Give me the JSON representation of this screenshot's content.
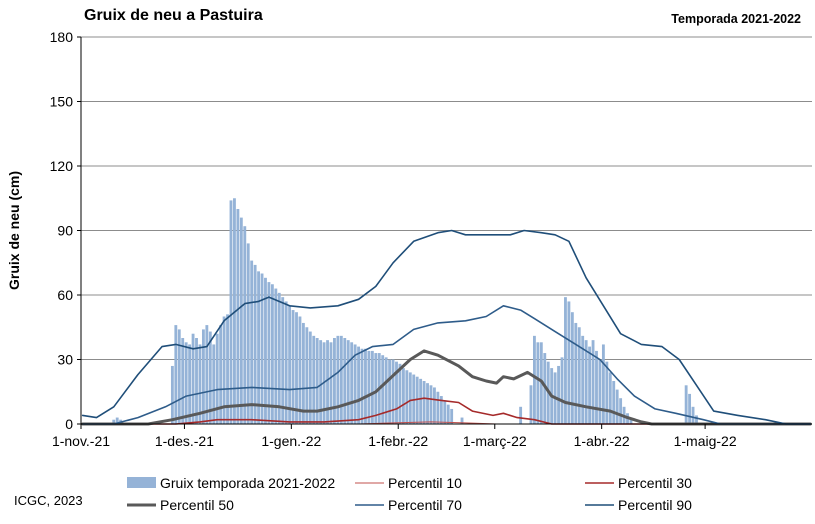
{
  "header": {
    "title": "Gruix de neu a Pastuira",
    "season": "Temporada 2021-2022"
  },
  "footer": {
    "credit": "ICGC, 2023"
  },
  "chart_data": {
    "type": "bar",
    "title": "Gruix de neu a Pastuira",
    "subtitle": "Temporada 2021-2022",
    "ylabel": "Gruix de neu (cm)",
    "xlabel": "",
    "ylim": [
      0,
      180
    ],
    "yticks": [
      0,
      30,
      60,
      90,
      120,
      150,
      180
    ],
    "x_start": "2021-11-01",
    "x_end": "2022-05-31",
    "x_ticks": [
      {
        "date": "2021-11-01",
        "label": "1-nov.-21"
      },
      {
        "date": "2021-12-01",
        "label": "1-des.-21"
      },
      {
        "date": "2022-01-01",
        "label": "1-gen.-22"
      },
      {
        "date": "2022-02-01",
        "label": "1-febr.-22"
      },
      {
        "date": "2022-03-01",
        "label": "1-març-22"
      },
      {
        "date": "2022-04-01",
        "label": "1-abr.-22"
      },
      {
        "date": "2022-05-01",
        "label": "1-maig-22"
      }
    ],
    "grid": true,
    "legend_position": "bottom",
    "bar_series": {
      "name": "Gruix temporada 2021-2022",
      "color": "#95b3d7",
      "points": [
        [
          "2021-11-10",
          2
        ],
        [
          "2021-11-11",
          3
        ],
        [
          "2021-11-12",
          2
        ],
        [
          "2021-11-27",
          27
        ],
        [
          "2021-11-28",
          46
        ],
        [
          "2021-11-29",
          44
        ],
        [
          "2021-11-30",
          40
        ],
        [
          "2021-12-01",
          38
        ],
        [
          "2021-12-02",
          37
        ],
        [
          "2021-12-03",
          42
        ],
        [
          "2021-12-04",
          40
        ],
        [
          "2021-12-05",
          37
        ],
        [
          "2021-12-06",
          44
        ],
        [
          "2021-12-07",
          46
        ],
        [
          "2021-12-08",
          43
        ],
        [
          "2021-12-09",
          37
        ],
        [
          "2021-12-10",
          42
        ],
        [
          "2021-12-11",
          46
        ],
        [
          "2021-12-12",
          50
        ],
        [
          "2021-12-13",
          51
        ],
        [
          "2021-12-14",
          104
        ],
        [
          "2021-12-15",
          105
        ],
        [
          "2021-12-16",
          100
        ],
        [
          "2021-12-17",
          96
        ],
        [
          "2021-12-18",
          92
        ],
        [
          "2021-12-19",
          84
        ],
        [
          "2021-12-20",
          76
        ],
        [
          "2021-12-21",
          74
        ],
        [
          "2021-12-22",
          71
        ],
        [
          "2021-12-23",
          70
        ],
        [
          "2021-12-24",
          68
        ],
        [
          "2021-12-25",
          66
        ],
        [
          "2021-12-26",
          65
        ],
        [
          "2021-12-27",
          63
        ],
        [
          "2021-12-28",
          61
        ],
        [
          "2021-12-29",
          59
        ],
        [
          "2021-12-30",
          57
        ],
        [
          "2021-12-31",
          55
        ],
        [
          "2022-01-01",
          53
        ],
        [
          "2022-01-02",
          52
        ],
        [
          "2022-01-03",
          50
        ],
        [
          "2022-01-04",
          47
        ],
        [
          "2022-01-05",
          45
        ],
        [
          "2022-01-06",
          43
        ],
        [
          "2022-01-07",
          41
        ],
        [
          "2022-01-08",
          40
        ],
        [
          "2022-01-09",
          39
        ],
        [
          "2022-01-10",
          38
        ],
        [
          "2022-01-11",
          39
        ],
        [
          "2022-01-12",
          38
        ],
        [
          "2022-01-13",
          40
        ],
        [
          "2022-01-14",
          41
        ],
        [
          "2022-01-15",
          41
        ],
        [
          "2022-01-16",
          40
        ],
        [
          "2022-01-17",
          39
        ],
        [
          "2022-01-18",
          38
        ],
        [
          "2022-01-19",
          37
        ],
        [
          "2022-01-20",
          36
        ],
        [
          "2022-01-21",
          35
        ],
        [
          "2022-01-22",
          35
        ],
        [
          "2022-01-23",
          34
        ],
        [
          "2022-01-24",
          34
        ],
        [
          "2022-01-25",
          33
        ],
        [
          "2022-01-26",
          33
        ],
        [
          "2022-01-27",
          32
        ],
        [
          "2022-01-28",
          31
        ],
        [
          "2022-01-29",
          30
        ],
        [
          "2022-01-30",
          30
        ],
        [
          "2022-01-31",
          29
        ],
        [
          "2022-02-01",
          28
        ],
        [
          "2022-02-02",
          26
        ],
        [
          "2022-02-03",
          25
        ],
        [
          "2022-02-04",
          24
        ],
        [
          "2022-02-05",
          23
        ],
        [
          "2022-02-06",
          22
        ],
        [
          "2022-02-07",
          21
        ],
        [
          "2022-02-08",
          20
        ],
        [
          "2022-02-09",
          19
        ],
        [
          "2022-02-10",
          18
        ],
        [
          "2022-02-11",
          17
        ],
        [
          "2022-02-12",
          15
        ],
        [
          "2022-02-13",
          13
        ],
        [
          "2022-02-14",
          11
        ],
        [
          "2022-02-15",
          9
        ],
        [
          "2022-02-16",
          7
        ],
        [
          "2022-02-19",
          3
        ],
        [
          "2022-03-08",
          8
        ],
        [
          "2022-03-11",
          18
        ],
        [
          "2022-03-12",
          41
        ],
        [
          "2022-03-13",
          38
        ],
        [
          "2022-03-14",
          38
        ],
        [
          "2022-03-15",
          33
        ],
        [
          "2022-03-16",
          29
        ],
        [
          "2022-03-17",
          26
        ],
        [
          "2022-03-18",
          24
        ],
        [
          "2022-03-19",
          27
        ],
        [
          "2022-03-20",
          31
        ],
        [
          "2022-03-21",
          59
        ],
        [
          "2022-03-22",
          57
        ],
        [
          "2022-03-23",
          52
        ],
        [
          "2022-03-24",
          47
        ],
        [
          "2022-03-25",
          45
        ],
        [
          "2022-03-26",
          41
        ],
        [
          "2022-03-27",
          39
        ],
        [
          "2022-03-28",
          36
        ],
        [
          "2022-03-29",
          39
        ],
        [
          "2022-03-30",
          34
        ],
        [
          "2022-03-31",
          30
        ],
        [
          "2022-04-01",
          37
        ],
        [
          "2022-04-02",
          29
        ],
        [
          "2022-04-03",
          24
        ],
        [
          "2022-04-04",
          20
        ],
        [
          "2022-04-05",
          16
        ],
        [
          "2022-04-06",
          12
        ],
        [
          "2022-04-07",
          8
        ],
        [
          "2022-04-08",
          5
        ],
        [
          "2022-04-09",
          3
        ],
        [
          "2022-04-25",
          18
        ],
        [
          "2022-04-26",
          14
        ],
        [
          "2022-04-27",
          8
        ],
        [
          "2022-04-28",
          4
        ]
      ]
    },
    "line_series": [
      {
        "name": "Percentil 10",
        "color": "#c0504d",
        "width": 1,
        "points": [
          [
            "2021-11-01",
            0
          ],
          [
            "2022-01-20",
            0
          ],
          [
            "2022-01-30",
            0.5
          ],
          [
            "2022-02-10",
            1
          ],
          [
            "2022-02-20",
            0.5
          ],
          [
            "2022-03-01",
            0
          ],
          [
            "2022-05-31",
            0
          ]
        ]
      },
      {
        "name": "Percentil 30",
        "color": "#a52a2a",
        "width": 1.6,
        "points": [
          [
            "2021-11-01",
            0
          ],
          [
            "2021-11-28",
            0
          ],
          [
            "2021-12-05",
            1
          ],
          [
            "2021-12-10",
            2
          ],
          [
            "2021-12-20",
            2
          ],
          [
            "2021-12-31",
            1
          ],
          [
            "2022-01-10",
            1
          ],
          [
            "2022-01-20",
            2
          ],
          [
            "2022-01-25",
            4
          ],
          [
            "2022-01-31",
            7
          ],
          [
            "2022-02-04",
            11
          ],
          [
            "2022-02-08",
            12
          ],
          [
            "2022-02-13",
            11
          ],
          [
            "2022-02-18",
            10
          ],
          [
            "2022-02-22",
            6
          ],
          [
            "2022-02-28",
            4
          ],
          [
            "2022-03-03",
            5
          ],
          [
            "2022-03-07",
            3
          ],
          [
            "2022-03-12",
            2
          ],
          [
            "2022-03-17",
            0
          ],
          [
            "2022-05-31",
            0
          ]
        ]
      },
      {
        "name": "Percentil 50",
        "color": "#595959",
        "width": 3,
        "points": [
          [
            "2021-11-01",
            0
          ],
          [
            "2021-11-20",
            0
          ],
          [
            "2021-11-27",
            2
          ],
          [
            "2021-12-05",
            5
          ],
          [
            "2021-12-12",
            8
          ],
          [
            "2021-12-20",
            9
          ],
          [
            "2021-12-28",
            8
          ],
          [
            "2022-01-04",
            6
          ],
          [
            "2022-01-08",
            6
          ],
          [
            "2022-01-14",
            8
          ],
          [
            "2022-01-20",
            11
          ],
          [
            "2022-01-25",
            15
          ],
          [
            "2022-01-31",
            24
          ],
          [
            "2022-02-04",
            30
          ],
          [
            "2022-02-08",
            34
          ],
          [
            "2022-02-12",
            32
          ],
          [
            "2022-02-18",
            27
          ],
          [
            "2022-02-22",
            22
          ],
          [
            "2022-02-26",
            20
          ],
          [
            "2022-03-01",
            19
          ],
          [
            "2022-03-03",
            22
          ],
          [
            "2022-03-06",
            21
          ],
          [
            "2022-03-10",
            24
          ],
          [
            "2022-03-14",
            20
          ],
          [
            "2022-03-17",
            13
          ],
          [
            "2022-03-21",
            10
          ],
          [
            "2022-03-27",
            8
          ],
          [
            "2022-04-03",
            6
          ],
          [
            "2022-04-08",
            3
          ],
          [
            "2022-04-12",
            1
          ],
          [
            "2022-04-15",
            0
          ],
          [
            "2022-05-31",
            0
          ]
        ]
      },
      {
        "name": "Percentil 70",
        "color": "#2e5c8a",
        "width": 1.6,
        "points": [
          [
            "2021-11-01",
            0
          ],
          [
            "2021-11-10",
            0
          ],
          [
            "2021-11-17",
            3
          ],
          [
            "2021-11-25",
            8
          ],
          [
            "2021-12-01",
            13
          ],
          [
            "2021-12-10",
            16
          ],
          [
            "2021-12-20",
            17
          ],
          [
            "2021-12-31",
            16
          ],
          [
            "2022-01-08",
            17
          ],
          [
            "2022-01-14",
            24
          ],
          [
            "2022-01-19",
            32
          ],
          [
            "2022-01-24",
            36
          ],
          [
            "2022-01-30",
            37
          ],
          [
            "2022-02-05",
            44
          ],
          [
            "2022-02-12",
            47
          ],
          [
            "2022-02-20",
            48
          ],
          [
            "2022-02-26",
            50
          ],
          [
            "2022-03-03",
            55
          ],
          [
            "2022-03-08",
            53
          ],
          [
            "2022-03-12",
            49
          ],
          [
            "2022-03-18",
            43
          ],
          [
            "2022-03-24",
            37
          ],
          [
            "2022-03-31",
            30
          ],
          [
            "2022-04-05",
            21
          ],
          [
            "2022-04-10",
            13
          ],
          [
            "2022-04-16",
            7
          ],
          [
            "2022-04-22",
            5
          ],
          [
            "2022-04-30",
            2
          ],
          [
            "2022-05-05",
            0
          ],
          [
            "2022-05-31",
            0
          ]
        ]
      },
      {
        "name": "Percentil 90",
        "color": "#1f4e79",
        "width": 1.6,
        "points": [
          [
            "2021-11-01",
            4
          ],
          [
            "2021-11-05",
            3
          ],
          [
            "2021-11-10",
            8
          ],
          [
            "2021-11-17",
            23
          ],
          [
            "2021-11-24",
            36
          ],
          [
            "2021-11-28",
            37
          ],
          [
            "2021-12-03",
            35
          ],
          [
            "2021-12-07",
            36
          ],
          [
            "2021-12-12",
            48
          ],
          [
            "2021-12-18",
            56
          ],
          [
            "2021-12-22",
            57
          ],
          [
            "2021-12-25",
            59
          ],
          [
            "2021-12-31",
            55
          ],
          [
            "2022-01-06",
            54
          ],
          [
            "2022-01-14",
            55
          ],
          [
            "2022-01-20",
            58
          ],
          [
            "2022-01-25",
            64
          ],
          [
            "2022-01-30",
            75
          ],
          [
            "2022-02-05",
            85
          ],
          [
            "2022-02-12",
            89
          ],
          [
            "2022-02-16",
            90
          ],
          [
            "2022-02-20",
            88
          ],
          [
            "2022-02-28",
            88
          ],
          [
            "2022-03-05",
            88
          ],
          [
            "2022-03-09",
            90
          ],
          [
            "2022-03-14",
            89
          ],
          [
            "2022-03-18",
            88
          ],
          [
            "2022-03-22",
            85
          ],
          [
            "2022-03-27",
            68
          ],
          [
            "2022-04-01",
            55
          ],
          [
            "2022-04-06",
            42
          ],
          [
            "2022-04-12",
            37
          ],
          [
            "2022-04-18",
            36
          ],
          [
            "2022-04-23",
            30
          ],
          [
            "2022-04-28",
            18
          ],
          [
            "2022-05-03",
            6
          ],
          [
            "2022-05-10",
            4
          ],
          [
            "2022-05-18",
            2
          ],
          [
            "2022-05-24",
            0
          ],
          [
            "2022-05-31",
            0
          ]
        ]
      }
    ]
  }
}
